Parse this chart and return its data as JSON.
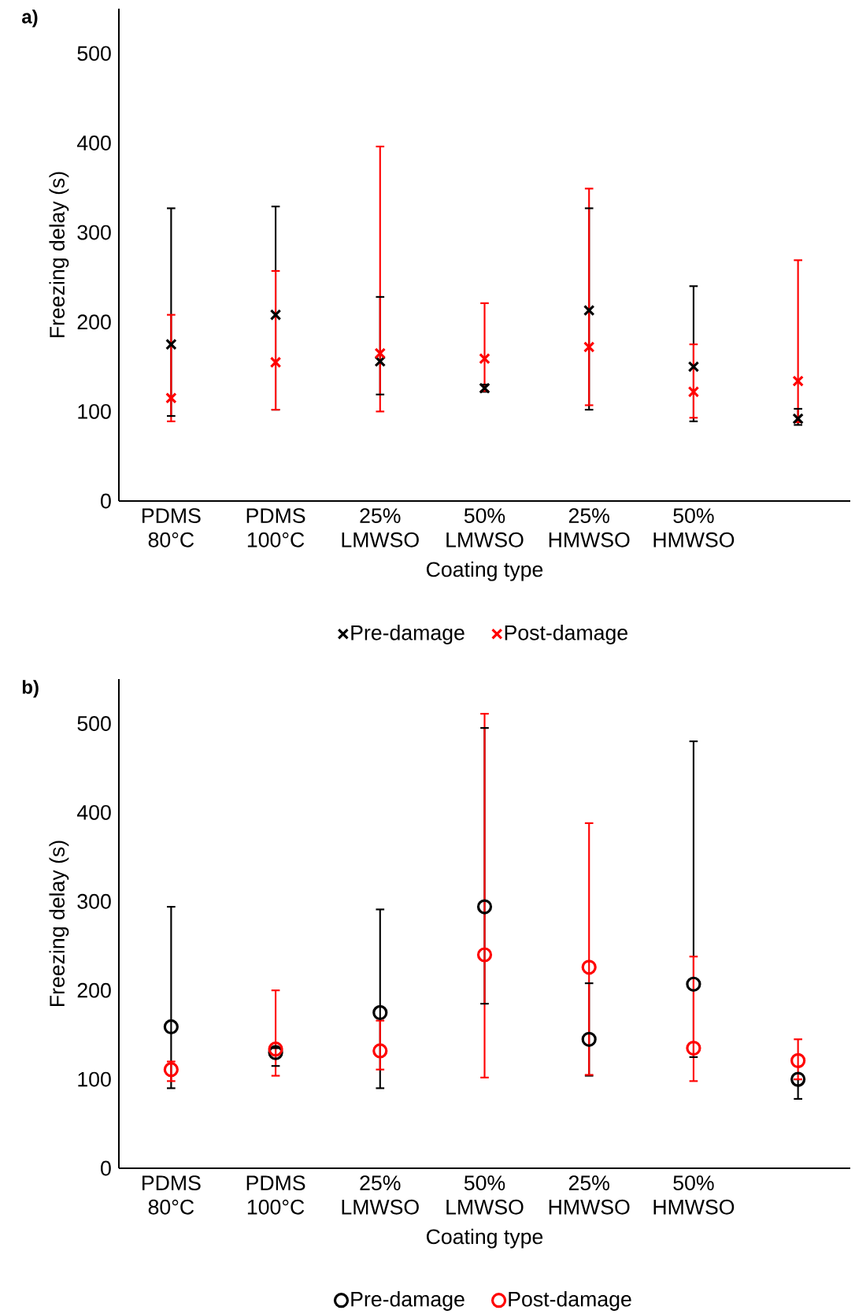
{
  "chart_data": [
    {
      "type": "scatter",
      "title": "a)",
      "xlabel": "Coating type",
      "ylabel": "Freezing delay (s)",
      "categories": [
        "PDMS 80°C",
        "PDMS 100°C",
        "25% LMWSO",
        "50% LMWSO",
        "25% HMWSO",
        "50% HMWSO",
        null
      ],
      "ylim": [
        0,
        550
      ],
      "yticks": [
        0,
        100,
        200,
        300,
        400,
        500
      ],
      "marker": "cross",
      "legend": "bottom",
      "series": [
        {
          "name": "Pre-damage",
          "color": "#000000",
          "values": [
            175,
            208,
            156,
            126,
            213,
            150,
            92
          ],
          "errors": [
            [
              95,
              327
            ],
            [
              102,
              329
            ],
            [
              119,
              228
            ],
            [
              122,
              130
            ],
            [
              102,
              327
            ],
            [
              89,
              240
            ],
            [
              85,
              103
            ]
          ]
        },
        {
          "name": "Post-damage",
          "color": "#ff0000",
          "values": [
            115,
            155,
            165,
            159,
            172,
            122,
            134
          ],
          "errors": [
            [
              89,
              208
            ],
            [
              102,
              257
            ],
            [
              100,
              396
            ],
            [
              123,
              221
            ],
            [
              107,
              349
            ],
            [
              93,
              175
            ],
            [
              88,
              269
            ]
          ]
        }
      ]
    },
    {
      "type": "scatter",
      "title": "b)",
      "xlabel": "Coating type",
      "ylabel": "Freezing delay (s)",
      "categories": [
        "PDMS 80°C",
        "PDMS 100°C",
        "25% LMWSO",
        "50% LMWSO",
        "25% HMWSO",
        "50% HMWSO",
        null
      ],
      "ylim": [
        0,
        550
      ],
      "yticks": [
        0,
        100,
        200,
        300,
        400,
        500
      ],
      "marker": "circle",
      "legend": "bottom",
      "series": [
        {
          "name": "Pre-damage",
          "color": "#000000",
          "values": [
            159,
            130,
            175,
            294,
            145,
            207,
            100
          ],
          "errors": [
            [
              90,
              294
            ],
            [
              115,
              135
            ],
            [
              90,
              291
            ],
            [
              185,
              495
            ],
            [
              104,
              208
            ],
            [
              125,
              480
            ],
            [
              78,
              100
            ]
          ]
        },
        {
          "name": "Post-damage",
          "color": "#ff0000",
          "values": [
            111,
            134,
            132,
            240,
            226,
            135,
            121
          ],
          "errors": [
            [
              98,
              120
            ],
            [
              104,
              200
            ],
            [
              111,
              166
            ],
            [
              102,
              511
            ],
            [
              105,
              388
            ],
            [
              98,
              238
            ],
            [
              100,
              145
            ]
          ]
        }
      ]
    }
  ]
}
